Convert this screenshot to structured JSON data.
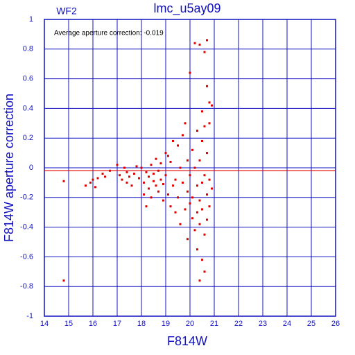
{
  "chart_data": {
    "type": "scatter",
    "title": "lmc_u5ay09",
    "subtitle": "WF2",
    "annotation": "Average aperture correction: -0.019",
    "reference_line": -0.019,
    "reference_color": "#e00000",
    "x_label": "F814W",
    "y_label": "F814W aperture correction",
    "axis_color": "#1010c0",
    "grid": true,
    "xlim": [
      14,
      26
    ],
    "xticks": [
      14,
      15,
      16,
      17,
      18,
      19,
      20,
      21,
      22,
      23,
      24,
      25,
      26
    ],
    "ylim": [
      -1,
      1
    ],
    "yticks": [
      -1,
      -0.8,
      -0.6,
      -0.4,
      -0.2,
      0,
      0.2,
      0.4,
      0.6,
      0.8,
      1
    ],
    "series": [
      {
        "color": "#e00000",
        "x": [
          14.8,
          14.8,
          15.7,
          15.9,
          16.0,
          16.1,
          16.2,
          16.4,
          16.5,
          16.7,
          17.0,
          17.1,
          17.2,
          17.3,
          17.4,
          17.4,
          17.5,
          17.6,
          17.7,
          17.8,
          17.9,
          18.0,
          18.1,
          18.1,
          18.2,
          18.2,
          18.3,
          18.3,
          18.4,
          18.4,
          18.5,
          18.5,
          18.6,
          18.6,
          18.7,
          18.7,
          18.8,
          18.8,
          18.9,
          18.9,
          19.0,
          19.0,
          19.1,
          19.1,
          19.2,
          19.2,
          19.3,
          19.3,
          19.4,
          19.4,
          19.5,
          19.5,
          19.6,
          19.6,
          19.7,
          19.7,
          19.8,
          19.8,
          19.9,
          19.9,
          19.9,
          20.0,
          20.0,
          20.0,
          20.1,
          20.1,
          20.1,
          20.2,
          20.2,
          20.2,
          20.3,
          20.3,
          20.3,
          20.3,
          20.4,
          20.4,
          20.4,
          20.4,
          20.4,
          20.5,
          20.5,
          20.5,
          20.5,
          20.5,
          20.6,
          20.6,
          20.6,
          20.6,
          20.6,
          20.7,
          20.7,
          20.7,
          20.7,
          20.7,
          20.8,
          20.8,
          20.8,
          20.8,
          20.9,
          20.9
        ],
        "values": [
          -0.76,
          -0.09,
          -0.12,
          -0.1,
          -0.08,
          -0.13,
          -0.07,
          -0.04,
          -0.06,
          -0.02,
          0.02,
          -0.05,
          -0.08,
          0.0,
          -0.03,
          -0.1,
          -0.06,
          -0.12,
          -0.04,
          0.01,
          -0.07,
          0.0,
          -0.1,
          -0.18,
          -0.03,
          -0.26,
          -0.06,
          -0.14,
          0.02,
          -0.2,
          -0.09,
          -0.04,
          -0.12,
          0.06,
          -0.02,
          -0.16,
          -0.08,
          0.03,
          -0.22,
          -0.11,
          0.1,
          -0.05,
          -0.18,
          0.08,
          -0.26,
          0.04,
          -0.12,
          0.18,
          -0.3,
          -0.08,
          0.15,
          -0.2,
          -0.38,
          0.0,
          -0.1,
          0.22,
          -0.28,
          0.3,
          -0.48,
          -0.16,
          0.05,
          -0.05,
          -0.24,
          0.64,
          -0.34,
          0.12,
          -0.2,
          0.84,
          -0.42,
          0.0,
          -0.12,
          -0.3,
          0.25,
          -0.55,
          0.83,
          -0.76,
          -0.22,
          0.05,
          -0.38,
          0.38,
          -0.62,
          -0.1,
          0.18,
          -0.28,
          0.78,
          -0.45,
          -0.05,
          0.28,
          -0.7,
          0.86,
          -0.35,
          0.1,
          -0.18,
          0.55,
          0.44,
          -0.08,
          0.3,
          -0.26,
          0.42,
          -0.14
        ]
      }
    ]
  }
}
